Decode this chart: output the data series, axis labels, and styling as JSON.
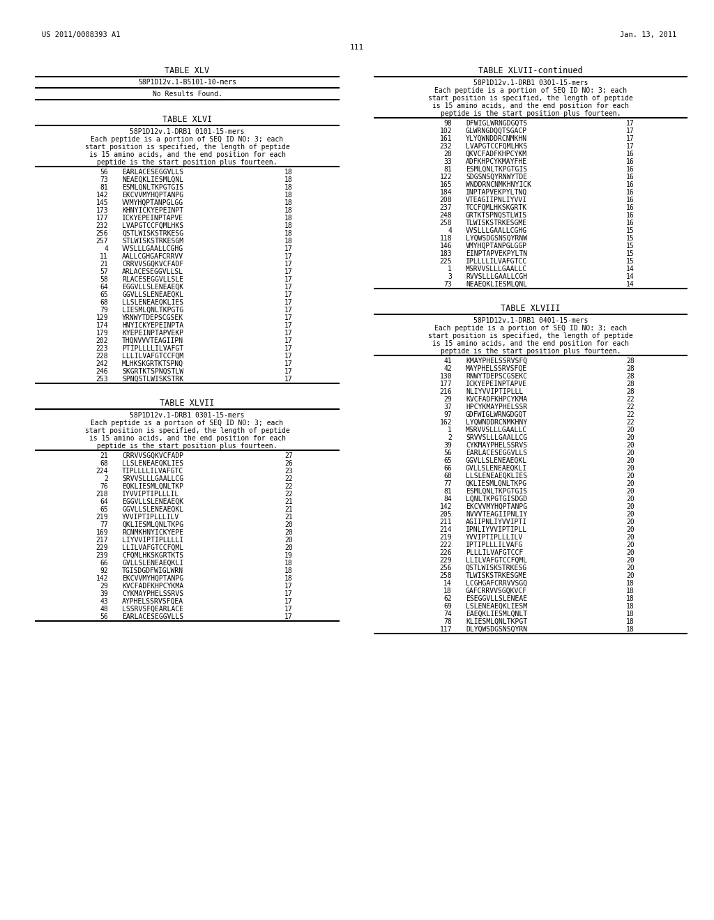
{
  "header_left": "US 2011/0008393 A1",
  "header_right": "Jan. 13, 2011",
  "page_number": "111",
  "background_color": "#ffffff",
  "table_xlv_title": "TABLE XLV",
  "table_xlv_subtitle": "58P1D12v.1-B5101-10-mers",
  "table_xlv_content": "No Results Found.",
  "table_xlvi_title": "TABLE XLVI",
  "table_xlvi_header": [
    "58P1D12v.1-DRB1 0101-15-mers",
    "Each peptide is a portion of SEQ ID NO: 3; each",
    "start position is specified, the length of peptide",
    "is 15 amino acids, and the end position for each",
    "peptide is the start position plus fourteen."
  ],
  "table_xlvi_rows": [
    [
      "56",
      "EARLACESEGGVLLS",
      "18"
    ],
    [
      "73",
      "NEAEQKLIESMLQNL",
      "18"
    ],
    [
      "81",
      "ESMLQNLTKPGTGIS",
      "18"
    ],
    [
      "142",
      "EKCVVMYHQPTANPG",
      "18"
    ],
    [
      "145",
      "VVMYHQPTANPGLGG",
      "18"
    ],
    [
      "173",
      "KHNYICKYEPEINPT",
      "18"
    ],
    [
      "177",
      "ICKYEPEINPTAPVE",
      "18"
    ],
    [
      "232",
      "LVAPGTCCFQMLHKS",
      "18"
    ],
    [
      "256",
      "QSTLWISKSTRKESG",
      "18"
    ],
    [
      "257",
      "STLWISKSTRKESGM",
      "18"
    ],
    [
      "4",
      "VVSLLLGAALLCGHG",
      "17"
    ],
    [
      "11",
      "AALLCGHGAFCRRVV",
      "17"
    ],
    [
      "21",
      "CRRVVSGQKVCFADF",
      "17"
    ],
    [
      "57",
      "ARLACESEGGVLLSL",
      "17"
    ],
    [
      "58",
      "RLACESEGGVLLSLE",
      "17"
    ],
    [
      "64",
      "EGGVLLSLENEAEQK",
      "17"
    ],
    [
      "65",
      "GGVLLSLENEAEQKL",
      "17"
    ],
    [
      "68",
      "LLSLENEAEQKLIES",
      "17"
    ],
    [
      "79",
      "LIESMLQNLTKPGTG",
      "17"
    ],
    [
      "129",
      "YRNWYTDEPSCGSEK",
      "17"
    ],
    [
      "174",
      "HNYICKYEPEINPTA",
      "17"
    ],
    [
      "179",
      "KYEPEINPTAPVEKP",
      "17"
    ],
    [
      "202",
      "THQNVVVTEAGIIPN",
      "17"
    ],
    [
      "223",
      "PTIPLLLLILVAFGT",
      "17"
    ],
    [
      "228",
      "LLLILVAFGTCCFQM",
      "17"
    ],
    [
      "242",
      "MLHKSKGRTKTSPNQ",
      "17"
    ],
    [
      "246",
      "SKGRTKTSPNQSTLW",
      "17"
    ],
    [
      "253",
      "SPNQSTLWISKSTRK",
      "17"
    ]
  ],
  "table_xlvii_title": "TABLE XLVII",
  "table_xlvii_header": [
    "58P1D12v.1-DRB1 0301-15-mers",
    "Each peptide is a portion of SEQ ID NO: 3; each",
    "start position is specified, the length of peptide",
    "is 15 amino acids, and the end position for each",
    "peptide is the start position plus fourteen."
  ],
  "table_xlvii_rows_left": [
    [
      "21",
      "CRRVVSGQKVCFADP",
      "27"
    ],
    [
      "68",
      "LLSLENEAEQKLIES",
      "26"
    ],
    [
      "224",
      "TIPLLLLILVAFGTC",
      "23"
    ],
    [
      "2",
      "SRVVSLLLGAALLCG",
      "22"
    ],
    [
      "76",
      "EQKLIESMLQNLTKP",
      "22"
    ],
    [
      "218",
      "IYVVIPTIPLLLIL",
      "22"
    ],
    [
      "64",
      "EGGVLLSLENEAEQK",
      "21"
    ],
    [
      "65",
      "GGVLLSLENEAEQKL",
      "21"
    ],
    [
      "219",
      "YVVIPTIPLLLILV",
      "21"
    ],
    [
      "77",
      "QKLIESMLQNLTKPG",
      "20"
    ],
    [
      "169",
      "RCNMKHNYICKYEPE",
      "20"
    ],
    [
      "217",
      "LIYVVIPTIPLLLLI",
      "20"
    ],
    [
      "229",
      "LLILVAFGTCCFQML",
      "20"
    ],
    [
      "239",
      "CFQMLHKSKGRTKTS",
      "19"
    ],
    [
      "66",
      "GVLLSLENEAEQKLI",
      "18"
    ],
    [
      "92",
      "TGISDGDFWIGLWRN",
      "18"
    ],
    [
      "142",
      "EKCVVMYHQPTANPG",
      "18"
    ],
    [
      "29",
      "KVCFADFKHPCYKMA",
      "17"
    ],
    [
      "39",
      "CYKMAYPHELSSRVS",
      "17"
    ],
    [
      "43",
      "AYPHELSSRVSFQEA",
      "17"
    ],
    [
      "48",
      "LSSRVSFQEARLACE",
      "17"
    ],
    [
      "56",
      "EARLACESEGGVLLS",
      "17"
    ]
  ],
  "table_xlvii_cont_title": "TABLE XLVII-continued",
  "table_xlvii_rows_right": [
    [
      "98",
      "DFWIGLWRNGDGQTS",
      "17"
    ],
    [
      "102",
      "GLWRNGDQQTSGACP",
      "17"
    ],
    [
      "161",
      "YLYQWNDDRCNMKHN",
      "17"
    ],
    [
      "232",
      "LVAPGTCCFQMLHKS",
      "17"
    ],
    [
      "28",
      "QKVCFADFKHPCYKM",
      "16"
    ],
    [
      "33",
      "ADFKHPCYKMAYFHE",
      "16"
    ],
    [
      "81",
      "ESMLQNLTKPGTGIS",
      "16"
    ],
    [
      "122",
      "SDGSNSQYRNWYTDE",
      "16"
    ],
    [
      "165",
      "WNDDRNCNMKHNYICK",
      "16"
    ],
    [
      "184",
      "INPTAPVEKPYLTNQ",
      "16"
    ],
    [
      "208",
      "VTEAGIIPNLIYVVI",
      "16"
    ],
    [
      "237",
      "TCCFQMLHKSKGRTK",
      "16"
    ],
    [
      "248",
      "GRTKTSPNQSTLWIS",
      "16"
    ],
    [
      "258",
      "TLWISKSTRKESGME",
      "16"
    ],
    [
      "4",
      "VVSLLLGAALLCGHG",
      "15"
    ],
    [
      "118",
      "LYQWSDGSNSQYRNW",
      "15"
    ],
    [
      "146",
      "VMYHQPTANPGLGGP",
      "15"
    ],
    [
      "183",
      "EINPTAPVEKPYLTN",
      "15"
    ],
    [
      "225",
      "IPLLLLILVAFGTCC",
      "15"
    ],
    [
      "1",
      "MSRVVSLLLGAALLC",
      "14"
    ],
    [
      "3",
      "RVVSLLLGAALLCGH",
      "14"
    ],
    [
      "73",
      "NEAEQKLIESMLQNL",
      "14"
    ]
  ],
  "table_xlviii_title": "TABLE XLVIII",
  "table_xlviii_header": [
    "58P1D12v.1-DRB1 0401-15-mers",
    "Each peptide is a portion of SEQ ID NO: 3; each",
    "start position is specified, the length of peptide",
    "is 15 amino acids, and the end position for each",
    "peptide is the start position plus fourteen."
  ],
  "table_xlviii_rows": [
    [
      "41",
      "KMAYPHELSSRVSFQ",
      "28"
    ],
    [
      "42",
      "MAYPHELSSRVSFQE",
      "28"
    ],
    [
      "130",
      "RNWYTDEPSCGSEKC",
      "28"
    ],
    [
      "177",
      "ICKYEPEINPTAPVE",
      "28"
    ],
    [
      "216",
      "NLIYVVIPTIPLLL",
      "28"
    ],
    [
      "29",
      "KVCFADFKHPCYKMA",
      "22"
    ],
    [
      "37",
      "HPCYKMAYPHELSSR",
      "22"
    ],
    [
      "97",
      "GDFWIGLWRNGDGQT",
      "22"
    ],
    [
      "162",
      "LYQWNDDRCNMKHNY",
      "22"
    ],
    [
      "1",
      "MSRVVSLLLGAALLC",
      "20"
    ],
    [
      "2",
      "SRVVSLLLGAALLCG",
      "20"
    ],
    [
      "39",
      "CYKMAYPHELSSRVS",
      "20"
    ],
    [
      "56",
      "EARLACESEGGVLLS",
      "20"
    ],
    [
      "65",
      "GGVLLSLENEAEQKL",
      "20"
    ],
    [
      "66",
      "GVLLSLENEAEQKLI",
      "20"
    ],
    [
      "68",
      "LLSLENEAEQKLIES",
      "20"
    ],
    [
      "77",
      "QKLIESMLQNLTKPG",
      "20"
    ],
    [
      "81",
      "ESMLQNLTKPGTGIS",
      "20"
    ],
    [
      "84",
      "LQNLTKPGTGISDGD",
      "20"
    ],
    [
      "142",
      "EKCVVMYHQPTANPG",
      "20"
    ],
    [
      "205",
      "NVVVTEAGIIPNLIY",
      "20"
    ],
    [
      "211",
      "AGIIPNLIYVVIPTI",
      "20"
    ],
    [
      "214",
      "IPNLIYVVIPTIPLL",
      "20"
    ],
    [
      "219",
      "YVVIPTIPLLLILV",
      "20"
    ],
    [
      "222",
      "IPTIPLLLILVAFG",
      "20"
    ],
    [
      "226",
      "PLLLILVAFGTCCF",
      "20"
    ],
    [
      "229",
      "LLILVAFGTCCFQML",
      "20"
    ],
    [
      "256",
      "QSTLWISKSTRKESG",
      "20"
    ],
    [
      "258",
      "TLWISKSTRKESGME",
      "20"
    ],
    [
      "14",
      "LCGHGAFCRRVVSGQ",
      "18"
    ],
    [
      "18",
      "GAFCRRVVSGQKVCF",
      "18"
    ],
    [
      "62",
      "ESEGGVLLSLENEAE",
      "18"
    ],
    [
      "69",
      "LSLENEAEQKLIESM",
      "18"
    ],
    [
      "74",
      "EAEQKLIESMLQNLT",
      "18"
    ],
    [
      "78",
      "KLIESMLQNLTKPGT",
      "18"
    ],
    [
      "117",
      "DLYQWSDGSNSQYRN",
      "18"
    ]
  ]
}
